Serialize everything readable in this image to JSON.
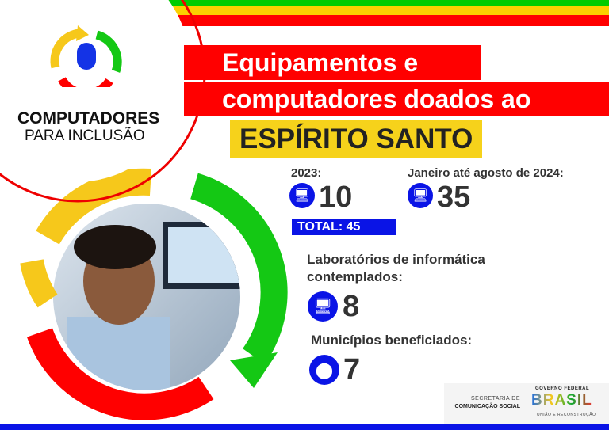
{
  "logo": {
    "title": "COMPUTADORES",
    "subtitle": "PARA INCLUSÃO",
    "icon": "mouse-recycle-icon"
  },
  "headline": {
    "line1": "Equipamentos e",
    "line2": "computadores doados ao",
    "state": "ESPÍRITO SANTO"
  },
  "stats": {
    "year2023": {
      "label": "2023:",
      "value": "10",
      "icon": "computer-icon"
    },
    "year2024": {
      "label": "Janeiro até agosto de 2024:",
      "value": "35",
      "icon": "computer-icon"
    },
    "total": "TOTAL: 45",
    "labs": {
      "label_line1": "Laboratórios de informática",
      "label_line2": "contemplados:",
      "value": "8",
      "icon": "computer-icon"
    },
    "municipios": {
      "label": "Municípios beneficiados:",
      "value": "7",
      "icon": "location-pin-icon"
    }
  },
  "footer": {
    "secom_line1": "SECRETARIA DE",
    "secom_line2": "COMUNICAÇÃO SOCIAL",
    "gov_top": "GOVERNO FEDERAL",
    "gov_brand": "BRASIL",
    "gov_bottom": "UNIÃO E RECONSTRUÇÃO"
  },
  "colors": {
    "green": "#00cc00",
    "yellow": "#f6d21b",
    "red": "#ff0000",
    "blue": "#0a14e6"
  }
}
